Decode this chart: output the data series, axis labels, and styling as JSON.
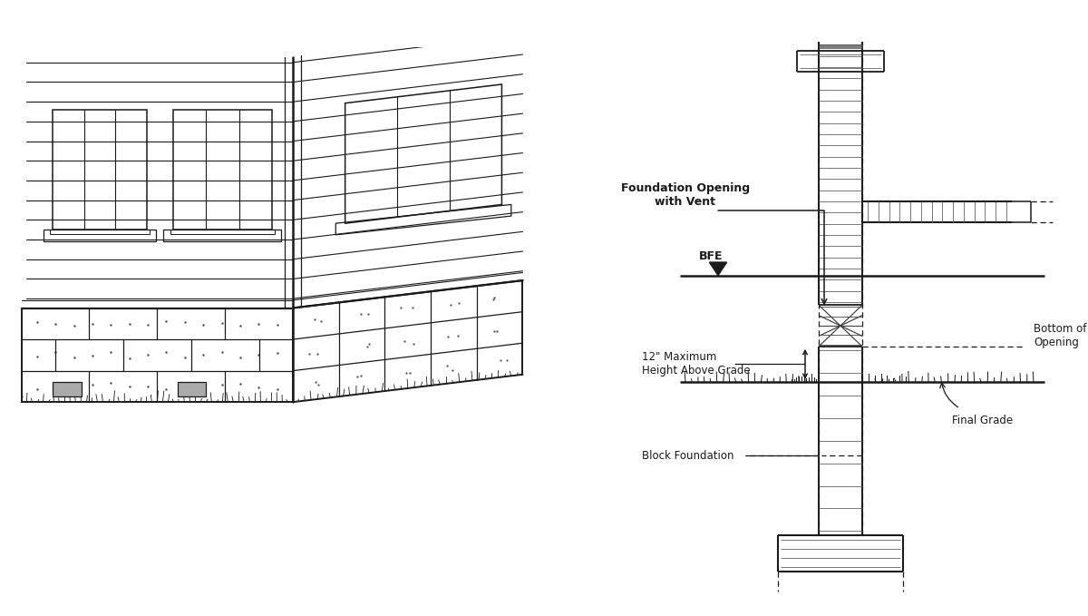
{
  "bg_color": "#ffffff",
  "line_color": "#1a1a1a",
  "text_color": "#1a1a1a",
  "fig_width": 12.0,
  "fig_height": 6.79,
  "labels": {
    "foundation_opening": "Foundation Opening\nwith Vent",
    "bfe": "BFE",
    "height_label": "12\" Maximum\nHeight Above Grade",
    "block_foundation": "Block Foundation",
    "bottom_of_opening": "Bottom of\nOpening",
    "final_grade": "Final Grade"
  }
}
